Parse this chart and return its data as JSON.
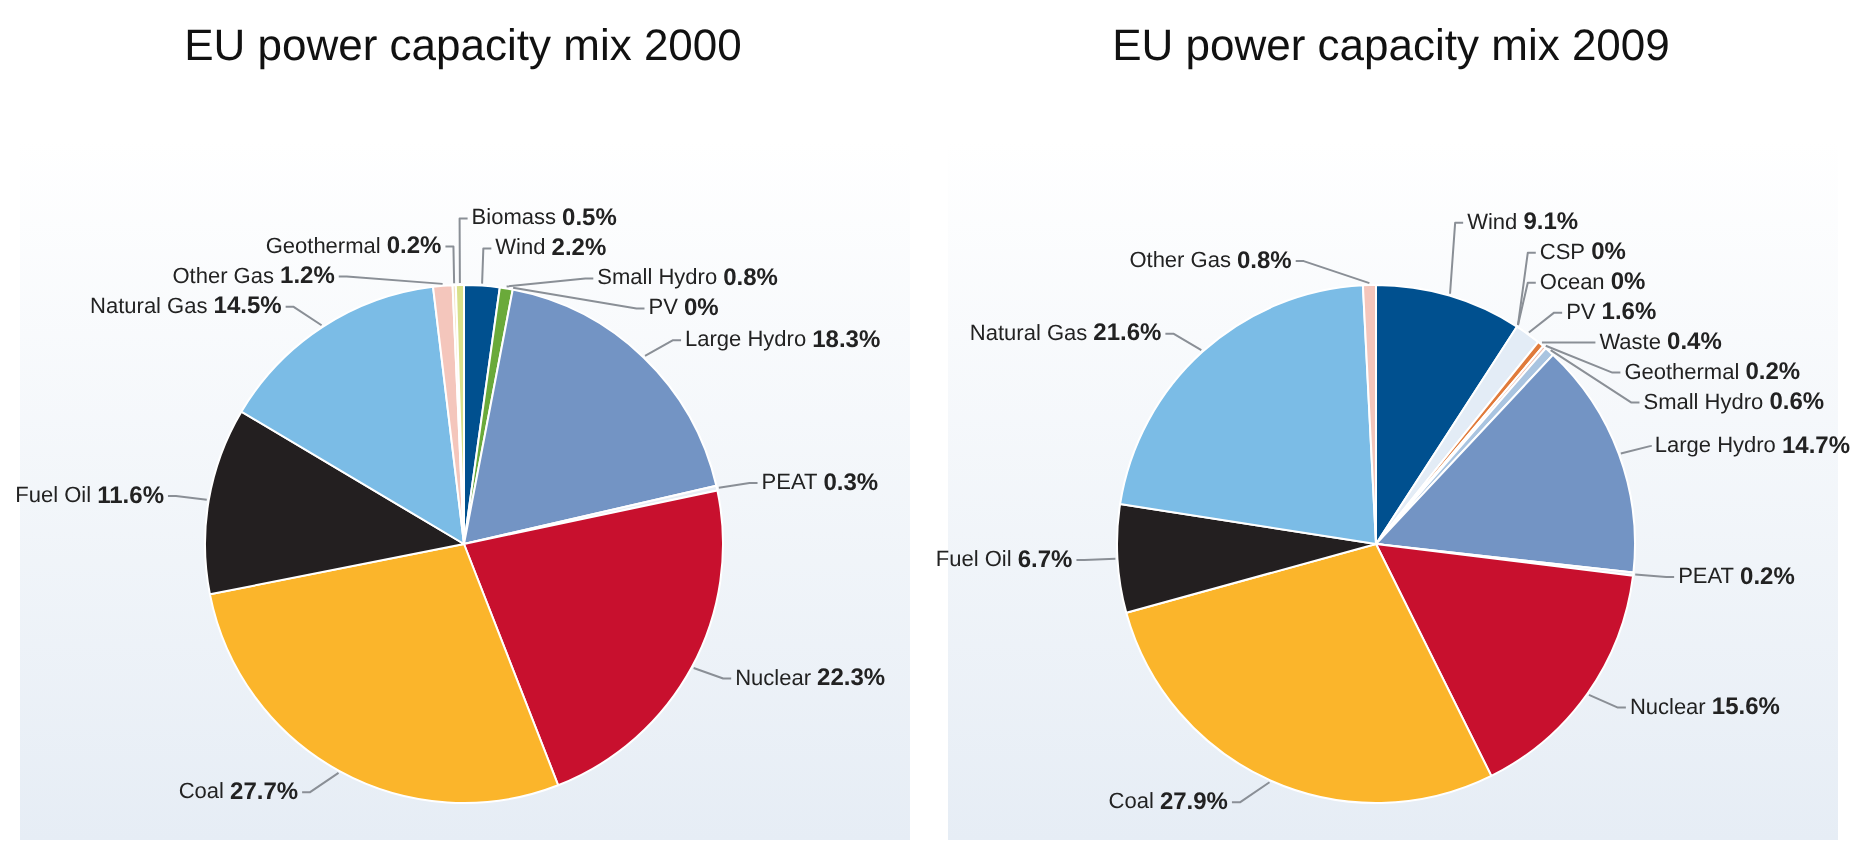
{
  "chart_data": [
    {
      "type": "pie",
      "title": "EU power capacity mix 2000",
      "categories": [
        "Wind",
        "Small Hydro",
        "PV",
        "Large Hydro",
        "PEAT",
        "Nuclear",
        "Coal",
        "Fuel Oil",
        "Natural Gas",
        "Other Gas",
        "Geothermal",
        "Biomass"
      ],
      "values": [
        2.2,
        0.8,
        0,
        18.3,
        0.3,
        22.3,
        27.7,
        11.6,
        14.5,
        1.2,
        0.2,
        0.5
      ],
      "value_labels": [
        "2.2%",
        "0.8%",
        "0%",
        "18.3%",
        "0.3%",
        "22.3%",
        "27.7%",
        "11.6%",
        "14.5%",
        "1.2%",
        "0.2%",
        "0.5%"
      ],
      "colors": [
        "#00508f",
        "#6aaa3a",
        "#ffffff",
        "#7394c4",
        "#e8eef5",
        "#c8102e",
        "#fbb52b",
        "#231f20",
        "#7bbce6",
        "#f4c6bc",
        "#f3e3c3",
        "#d8e08a"
      ]
    },
    {
      "type": "pie",
      "title": "EU power capacity mix 2009",
      "categories": [
        "Wind",
        "CSP",
        "Ocean",
        "PV",
        "Waste",
        "Geothermal",
        "Small Hydro",
        "Large Hydro",
        "PEAT",
        "Nuclear",
        "Coal",
        "Fuel Oil",
        "Natural Gas",
        "Other Gas"
      ],
      "values": [
        9.1,
        0,
        0,
        1.6,
        0.4,
        0.2,
        0.6,
        14.7,
        0.2,
        15.6,
        27.9,
        6.7,
        21.6,
        0.8
      ],
      "value_labels": [
        "9.1%",
        "0%",
        "0%",
        "1.6%",
        "0.4%",
        "0.2%",
        "0.6%",
        "14.7%",
        "0.2%",
        "15.6%",
        "27.9%",
        "6.7%",
        "21.6%",
        "0.8%"
      ],
      "colors": [
        "#00508f",
        "#f2c94c",
        "#3a8fb7",
        "#e3ecf6",
        "#e07a3a",
        "#f0c0b0",
        "#a9c4e0",
        "#7394c4",
        "#e8eef5",
        "#c8102e",
        "#fbb52b",
        "#231f20",
        "#7bbce6",
        "#f4c6bc"
      ]
    }
  ]
}
